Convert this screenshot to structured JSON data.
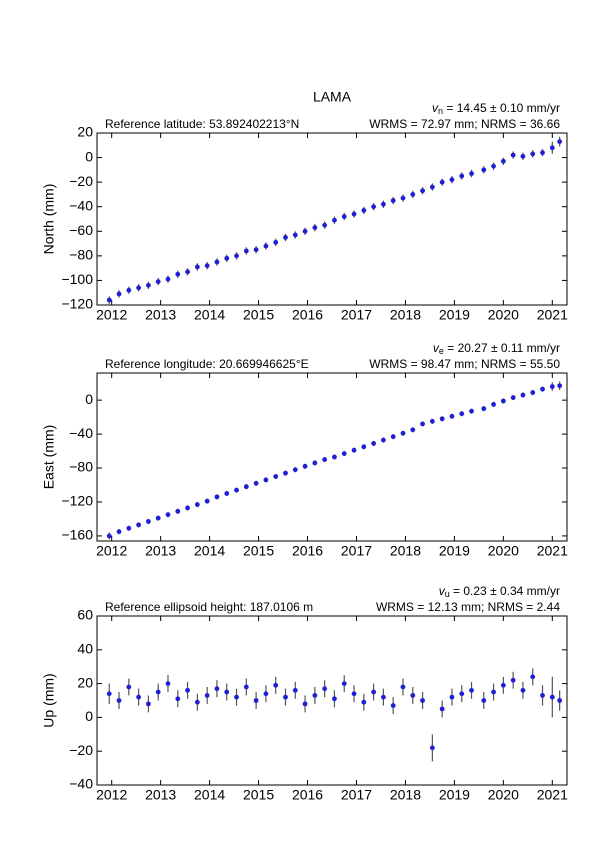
{
  "title": "LAMA",
  "chart_data": [
    {
      "type": "scatter",
      "ylabel": "North (mm)",
      "reference": "Reference latitude: 53.892402213°N",
      "rate_symbol": "v",
      "rate_subscript": "n",
      "rate_text": " = 14.45 ± 0.10 mm/yr",
      "stats": "WRMS = 72.97 mm; NRMS = 36.66",
      "color": "#1f1fd6",
      "error_color": "#555555",
      "xlim": [
        2011.7,
        2021.3
      ],
      "xticks": [
        2012,
        2013,
        2014,
        2015,
        2016,
        2017,
        2018,
        2019,
        2020,
        2021
      ],
      "ylim": [
        -120,
        20
      ],
      "yticks": [
        {
          "value": -120,
          "label": "−120"
        },
        {
          "value": -100,
          "label": "−100"
        },
        {
          "value": -80,
          "label": "−80"
        },
        {
          "value": -60,
          "label": "−60"
        },
        {
          "value": -40,
          "label": "−40"
        },
        {
          "value": -20,
          "label": "−20"
        },
        0,
        20
      ],
      "x": [
        2011.95,
        2012.15,
        2012.35,
        2012.55,
        2012.75,
        2012.95,
        2013.15,
        2013.35,
        2013.55,
        2013.75,
        2013.95,
        2014.15,
        2014.35,
        2014.55,
        2014.75,
        2014.95,
        2015.15,
        2015.35,
        2015.55,
        2015.75,
        2015.95,
        2016.15,
        2016.35,
        2016.55,
        2016.75,
        2016.95,
        2017.15,
        2017.35,
        2017.55,
        2017.75,
        2017.95,
        2018.15,
        2018.35,
        2018.55,
        2018.75,
        2018.95,
        2019.15,
        2019.35,
        2019.6,
        2019.8,
        2020.0,
        2020.2,
        2020.4,
        2020.6,
        2020.8,
        2021.0,
        2021.15
      ],
      "values": [
        -116,
        -111,
        -108,
        -106,
        -104,
        -101,
        -99,
        -95,
        -93,
        -89,
        -88,
        -85,
        -82,
        -80,
        -76,
        -75,
        -72,
        -69,
        -65,
        -63,
        -60,
        -57,
        -55,
        -51,
        -48,
        -46,
        -43,
        -40,
        -38,
        -35,
        -33,
        -30,
        -27,
        -24,
        -20,
        -18,
        -15,
        -13,
        -10,
        -7,
        -3,
        2,
        1,
        3,
        4,
        8,
        13
      ],
      "errors": [
        3,
        3,
        3,
        3,
        3,
        3,
        3,
        3,
        3,
        3,
        3,
        3,
        3,
        3,
        3,
        3,
        3,
        3,
        3,
        3,
        3,
        3,
        3,
        3,
        3,
        3,
        3,
        3,
        3,
        3,
        3,
        3,
        3,
        3,
        3,
        3,
        3,
        3,
        3,
        3,
        3,
        3,
        3,
        3,
        3,
        5,
        4
      ]
    },
    {
      "type": "scatter",
      "ylabel": "East (mm)",
      "reference": "Reference longitude: 20.669946625°E",
      "rate_symbol": "v",
      "rate_subscript": "e",
      "rate_text": " = 20.27 ± 0.11 mm/yr",
      "stats": "WRMS = 98.47 mm; NRMS = 55.50",
      "color": "#1f1fd6",
      "error_color": "#555555",
      "xlim": [
        2011.7,
        2021.3
      ],
      "xticks": [
        2012,
        2013,
        2014,
        2015,
        2016,
        2017,
        2018,
        2019,
        2020,
        2021
      ],
      "ylim": [
        -166,
        32
      ],
      "yticks": [
        {
          "value": -160,
          "label": "−160"
        },
        {
          "value": -120,
          "label": "−120"
        },
        {
          "value": -80,
          "label": "−80"
        },
        {
          "value": -40,
          "label": "−40"
        },
        0
      ],
      "x": [
        2011.95,
        2012.15,
        2012.35,
        2012.55,
        2012.75,
        2012.95,
        2013.15,
        2013.35,
        2013.55,
        2013.75,
        2013.95,
        2014.15,
        2014.35,
        2014.55,
        2014.75,
        2014.95,
        2015.15,
        2015.35,
        2015.55,
        2015.75,
        2015.95,
        2016.15,
        2016.35,
        2016.55,
        2016.75,
        2016.95,
        2017.15,
        2017.35,
        2017.55,
        2017.75,
        2017.95,
        2018.15,
        2018.35,
        2018.55,
        2018.75,
        2018.95,
        2019.15,
        2019.35,
        2019.6,
        2019.8,
        2020.0,
        2020.2,
        2020.4,
        2020.6,
        2020.8,
        2021.0,
        2021.15
      ],
      "values": [
        -160,
        -155,
        -151,
        -147,
        -143,
        -139,
        -135,
        -131,
        -127,
        -123,
        -119,
        -114,
        -110,
        -106,
        -102,
        -98,
        -94,
        -90,
        -86,
        -82,
        -78,
        -74,
        -70,
        -67,
        -63,
        -59,
        -55,
        -51,
        -47,
        -43,
        -39,
        -35,
        -28,
        -25,
        -22,
        -19,
        -16,
        -13,
        -10,
        -5,
        -1,
        3,
        6,
        9,
        13,
        16,
        17
      ],
      "errors": [
        4,
        3,
        3,
        3,
        3,
        3,
        3,
        3,
        3,
        3,
        3,
        3,
        3,
        3,
        3,
        3,
        3,
        3,
        3,
        3,
        3,
        3,
        3,
        3,
        3,
        3,
        3,
        3,
        3,
        3,
        3,
        3,
        3,
        3,
        3,
        3,
        3,
        3,
        3,
        3,
        3,
        3,
        3,
        3,
        3,
        5,
        5
      ]
    },
    {
      "type": "scatter",
      "ylabel": "Up (mm)",
      "reference": "Reference ellipsoid height: 187.0106 m",
      "rate_symbol": "v",
      "rate_subscript": "u",
      "rate_text": " = 0.23 ± 0.34 mm/yr",
      "stats": "WRMS = 12.13 mm; NRMS = 2.44",
      "color": "#1f1fd6",
      "error_color": "#555555",
      "xlim": [
        2011.7,
        2021.3
      ],
      "xticks": [
        2012,
        2013,
        2014,
        2015,
        2016,
        2017,
        2018,
        2019,
        2020,
        2021
      ],
      "ylim": [
        -40,
        60
      ],
      "yticks": [
        {
          "value": -40,
          "label": "−40"
        },
        {
          "value": -20,
          "label": "−20"
        },
        0,
        20,
        40,
        60
      ],
      "x": [
        2011.95,
        2012.15,
        2012.35,
        2012.55,
        2012.75,
        2012.95,
        2013.15,
        2013.35,
        2013.55,
        2013.75,
        2013.95,
        2014.15,
        2014.35,
        2014.55,
        2014.75,
        2014.95,
        2015.15,
        2015.35,
        2015.55,
        2015.75,
        2015.95,
        2016.15,
        2016.35,
        2016.55,
        2016.75,
        2016.95,
        2017.15,
        2017.35,
        2017.55,
        2017.75,
        2017.95,
        2018.15,
        2018.35,
        2018.55,
        2018.75,
        2018.95,
        2019.15,
        2019.35,
        2019.6,
        2019.8,
        2020.0,
        2020.2,
        2020.4,
        2020.6,
        2020.8,
        2021.0,
        2021.15
      ],
      "values": [
        14,
        10,
        18,
        12,
        8,
        15,
        20,
        11,
        16,
        9,
        13,
        17,
        15,
        12,
        18,
        10,
        14,
        19,
        12,
        16,
        8,
        13,
        17,
        11,
        20,
        14,
        9,
        15,
        12,
        7,
        18,
        13,
        10,
        -18,
        5,
        12,
        14,
        16,
        10,
        15,
        19,
        22,
        16,
        24,
        13,
        12,
        10
      ],
      "errors": [
        6,
        5,
        5,
        5,
        5,
        5,
        5,
        5,
        5,
        5,
        5,
        5,
        5,
        5,
        5,
        5,
        5,
        5,
        5,
        5,
        5,
        5,
        5,
        5,
        5,
        5,
        5,
        5,
        5,
        5,
        5,
        5,
        5,
        8,
        5,
        5,
        5,
        5,
        5,
        5,
        5,
        5,
        5,
        5,
        6,
        12,
        6
      ]
    }
  ]
}
